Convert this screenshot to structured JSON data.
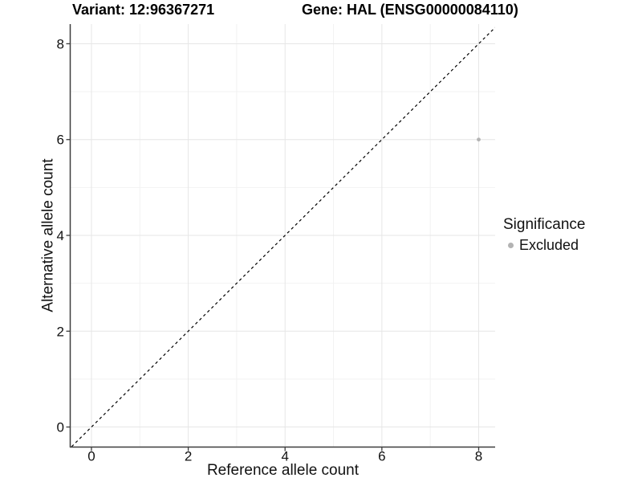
{
  "chart_data": {
    "type": "scatter",
    "titles": {
      "left": "Variant: 12:96367271",
      "right": "Gene: HAL (ENSG00000084110)"
    },
    "xlabel": "Reference allele count",
    "ylabel": "Alternative allele count",
    "xlim": [
      -0.43,
      8.34
    ],
    "ylim": [
      -0.41,
      8.41
    ],
    "xticks": [
      0,
      2,
      4,
      6,
      8
    ],
    "yticks": [
      0,
      2,
      4,
      6,
      8
    ],
    "xgrid_minor": [
      1,
      3,
      5,
      7
    ],
    "ygrid_minor": [
      1,
      3,
      5,
      7
    ],
    "grid": true,
    "identity_line": {
      "show": true,
      "style": "dashed",
      "slope": 1,
      "intercept": 0,
      "color": "#000000"
    },
    "series": [
      {
        "name": "Excluded",
        "color": "#b3b3b3",
        "points": [
          {
            "x": 8,
            "y": 6
          }
        ]
      }
    ],
    "legend": {
      "title": "Significance",
      "position": "right",
      "items": [
        {
          "label": "Excluded",
          "color": "#b3b3b3"
        }
      ]
    },
    "colors": {
      "background": "#ffffff",
      "axis_line": "#3d3d3d",
      "tick_text": "#111111",
      "grid_major": "#e6e6e6",
      "grid_minor": "#f2f2f2"
    }
  }
}
